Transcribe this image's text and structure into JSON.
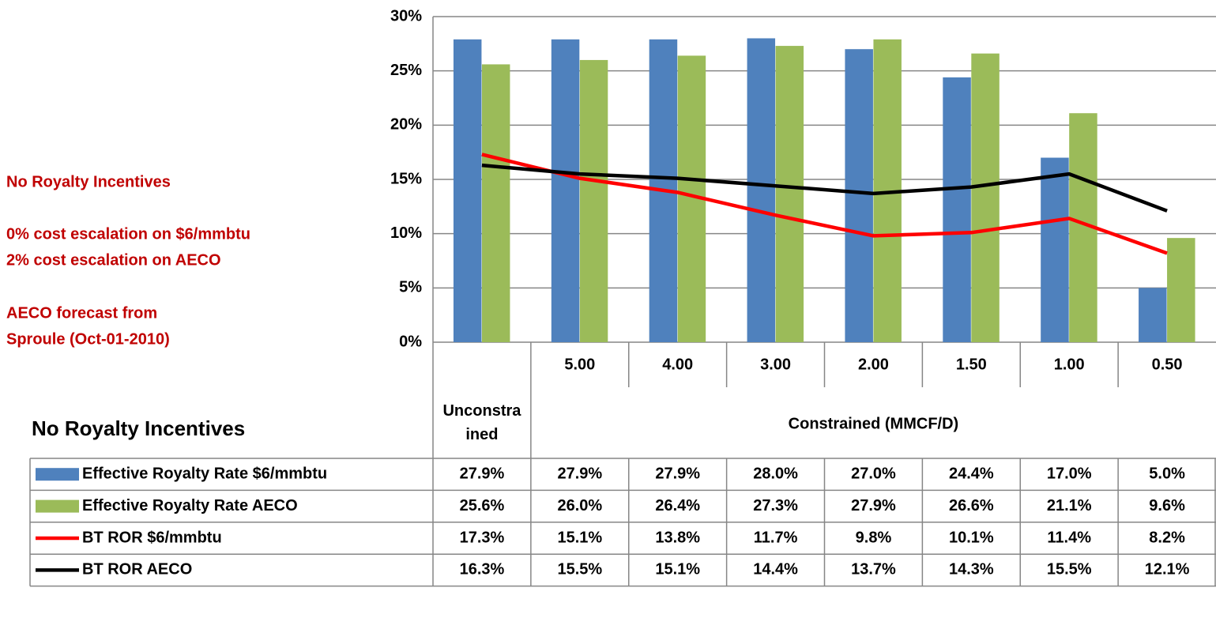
{
  "chart_data": {
    "type": "bar",
    "annotations": [
      "No Royalty Incentives",
      "0% cost escalation on $6/mmbtu",
      "2% cost escalation on AECO",
      "AECO forecast from",
      "Sproule (Oct-01-2010)"
    ],
    "table_title": "No Royalty Incentives",
    "categories": [
      {
        "group": "Unconstrained",
        "label": null
      },
      {
        "group": "Constrained (MMCF/D)",
        "label": "5.00"
      },
      {
        "group": "Constrained (MMCF/D)",
        "label": "4.00"
      },
      {
        "group": "Constrained (MMCF/D)",
        "label": "3.00"
      },
      {
        "group": "Constrained (MMCF/D)",
        "label": "2.00"
      },
      {
        "group": "Constrained (MMCF/D)",
        "label": "1.50"
      },
      {
        "group": "Constrained (MMCF/D)",
        "label": "1.00"
      },
      {
        "group": "Constrained (MMCF/D)",
        "label": "0.50"
      }
    ],
    "series": [
      {
        "name": "Effective Royalty Rate $6/mmbtu",
        "kind": "bar",
        "color": "#4f81bd",
        "values": [
          27.9,
          27.9,
          27.9,
          28.0,
          27.0,
          24.4,
          17.0,
          5.0
        ],
        "value_labels": [
          "27.9%",
          "27.9%",
          "27.9%",
          "28.0%",
          "27.0%",
          "24.4%",
          "17.0%",
          "5.0%"
        ]
      },
      {
        "name": "Effective Royalty Rate AECO",
        "kind": "bar",
        "color": "#9bbb59",
        "values": [
          25.6,
          26.0,
          26.4,
          27.3,
          27.9,
          26.6,
          21.1,
          9.6
        ],
        "value_labels": [
          "25.6%",
          "26.0%",
          "26.4%",
          "27.3%",
          "27.9%",
          "26.6%",
          "21.1%",
          "9.6%"
        ]
      },
      {
        "name": "BT ROR $6/mmbtu",
        "kind": "line",
        "color": "#ff0000",
        "values": [
          17.3,
          15.1,
          13.8,
          11.7,
          9.8,
          10.1,
          11.4,
          8.2
        ],
        "value_labels": [
          "17.3%",
          "15.1%",
          "13.8%",
          "11.7%",
          "9.8%",
          "10.1%",
          "11.4%",
          "8.2%"
        ]
      },
      {
        "name": "BT ROR AECO",
        "kind": "line",
        "color": "#000000",
        "values": [
          16.3,
          15.5,
          15.1,
          14.4,
          13.7,
          14.3,
          15.5,
          12.1
        ],
        "value_labels": [
          "16.3%",
          "15.5%",
          "15.1%",
          "14.4%",
          "13.7%",
          "14.3%",
          "15.5%",
          "12.1%"
        ]
      }
    ],
    "ylim": [
      0,
      30
    ],
    "yticks": [
      {
        "value": 0,
        "label": "0%"
      },
      {
        "value": 5,
        "label": "5%"
      },
      {
        "value": 10,
        "label": "10%"
      },
      {
        "value": 15,
        "label": "15%"
      },
      {
        "value": 20,
        "label": "20%"
      },
      {
        "value": 25,
        "label": "25%"
      },
      {
        "value": 30,
        "label": "30%"
      }
    ],
    "grid": true
  }
}
